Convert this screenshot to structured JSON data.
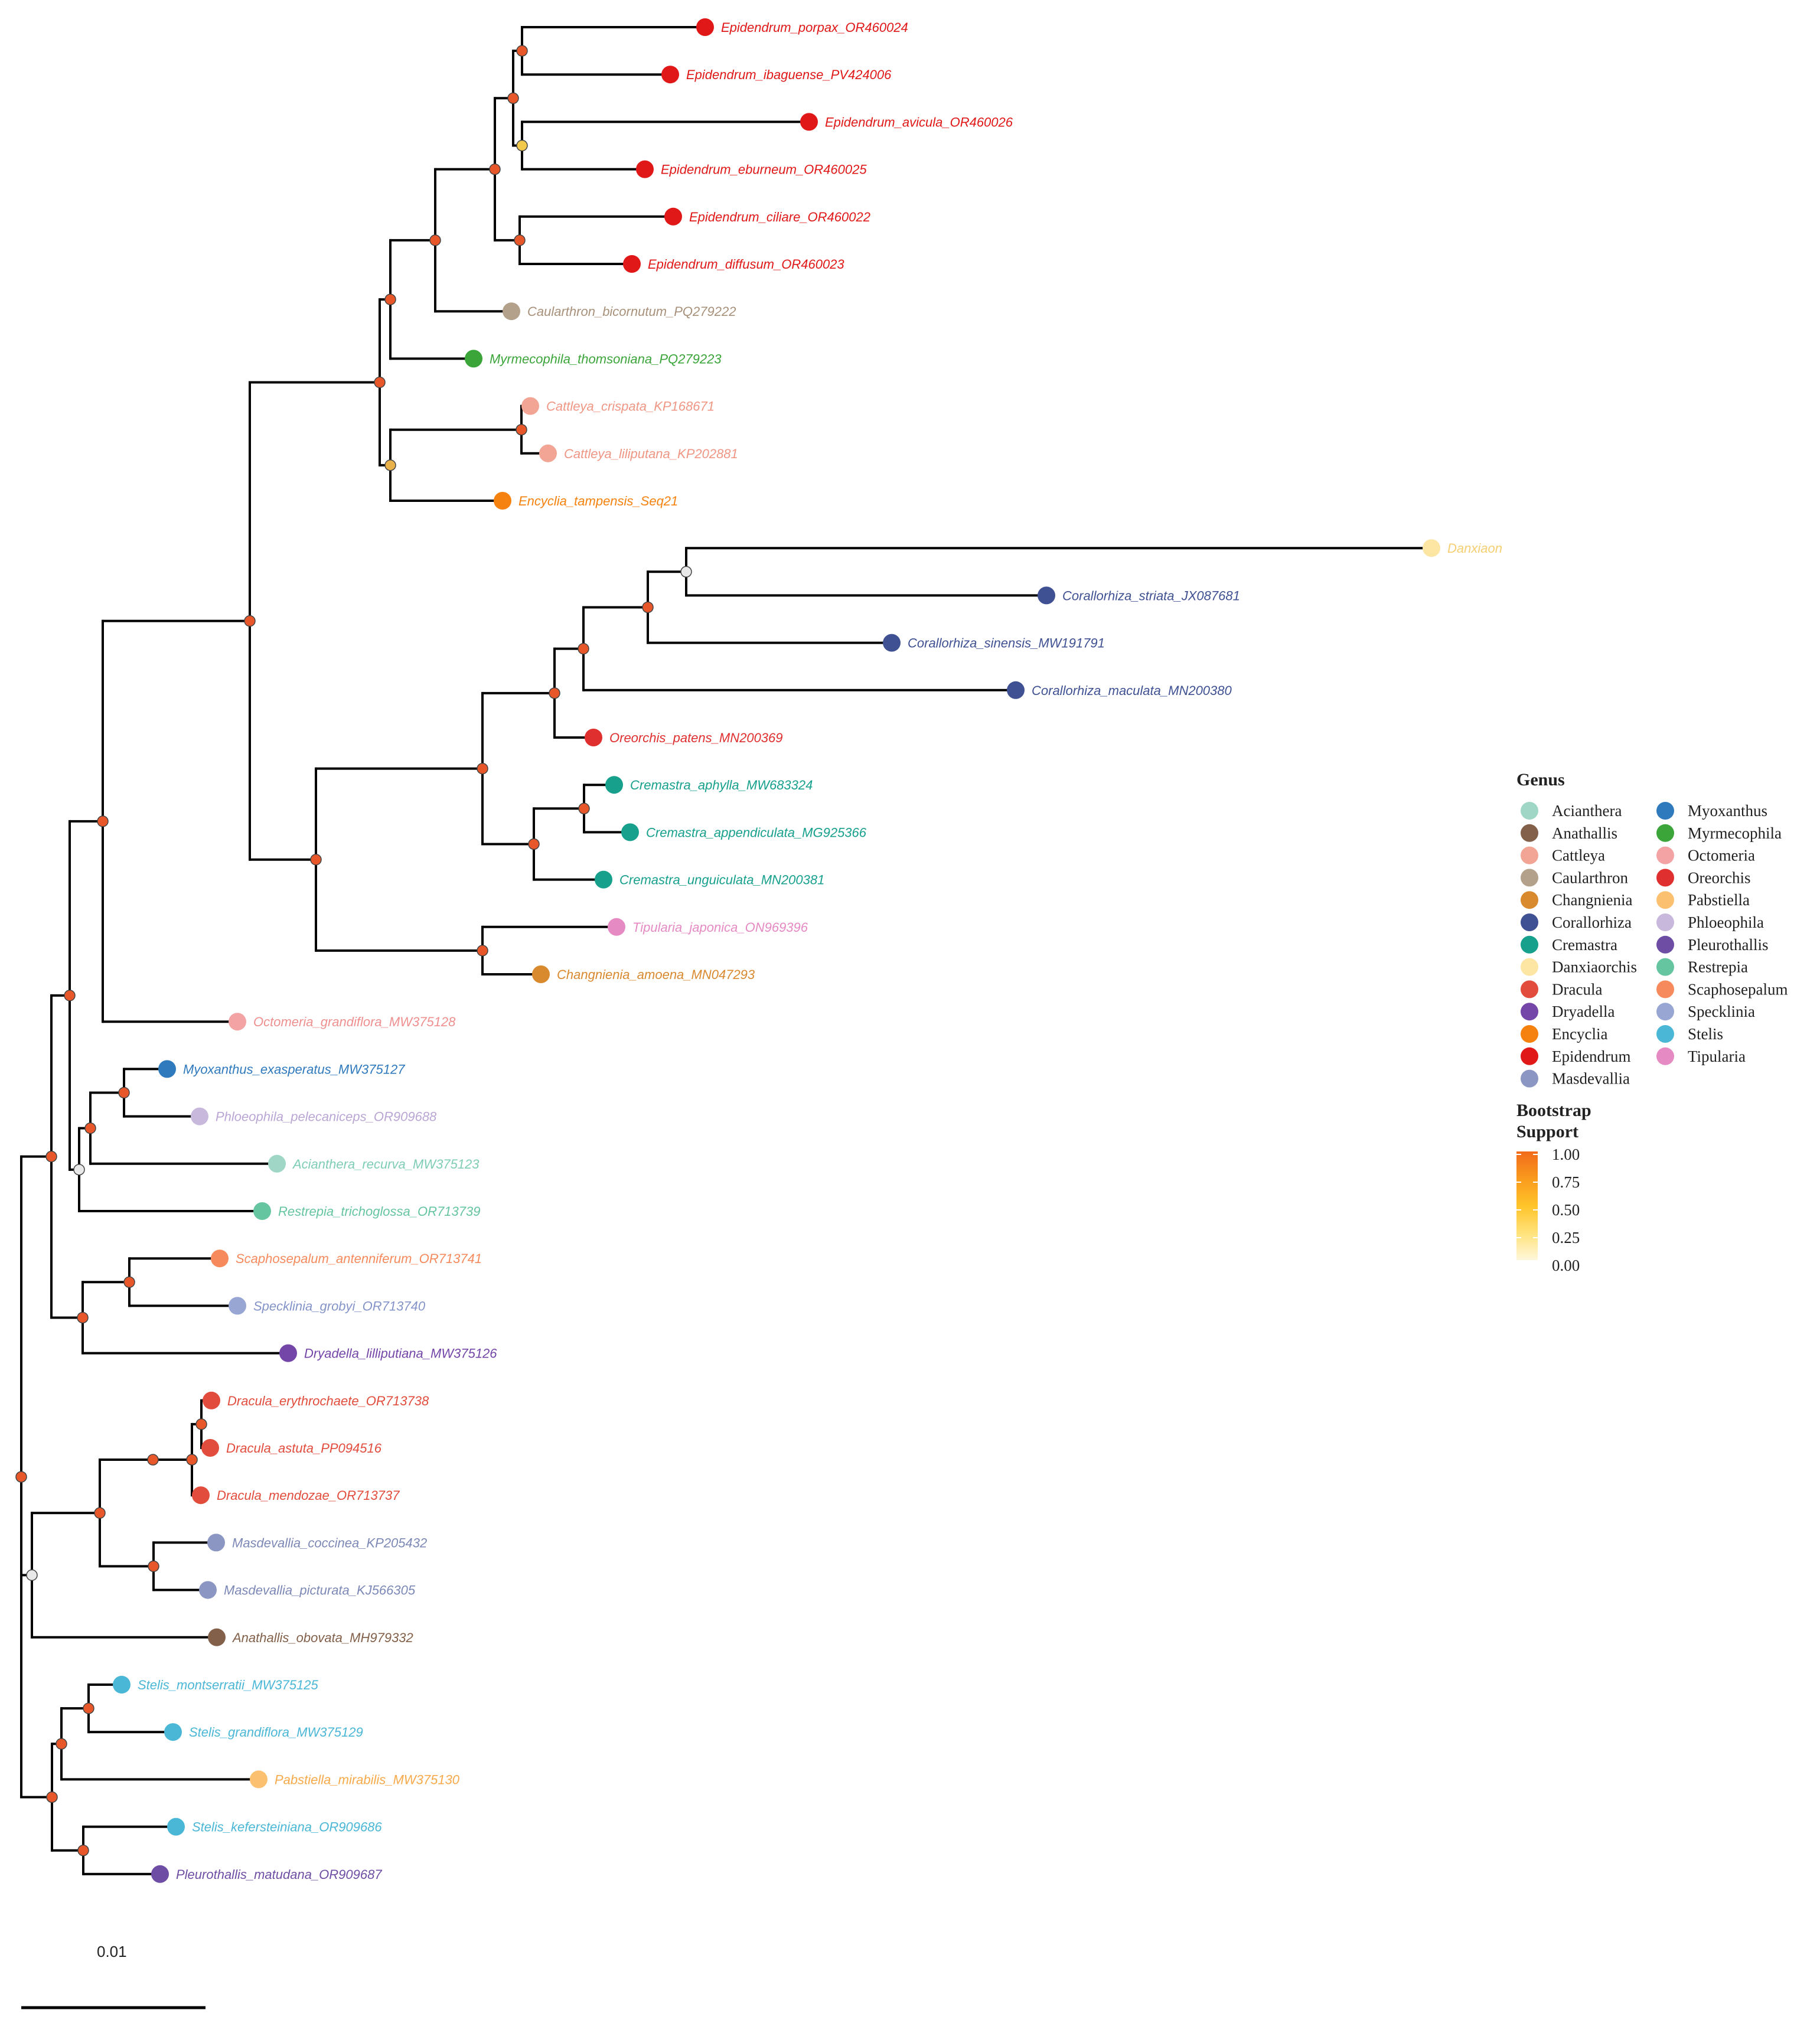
{
  "tree": {
    "tips": [
      {
        "name": "Epidendrum_porpax_OR460024",
        "genus": "Epidendrum"
      },
      {
        "name": "Epidendrum_ibaguense_PV424006",
        "genus": "Epidendrum"
      },
      {
        "name": "Epidendrum_avicula_OR460026",
        "genus": "Epidendrum"
      },
      {
        "name": "Epidendrum_eburneum_OR460025",
        "genus": "Epidendrum"
      },
      {
        "name": "Epidendrum_ciliare_OR460022",
        "genus": "Epidendrum"
      },
      {
        "name": "Epidendrum_diffusum_OR460023",
        "genus": "Epidendrum"
      },
      {
        "name": "Caularthron_bicornutum_PQ279222",
        "genus": "Caularthron"
      },
      {
        "name": "Myrmecophila_thomsoniana_PQ279223",
        "genus": "Myrmecophila"
      },
      {
        "name": "Cattleya_crispata_KP168671",
        "genus": "Cattleya"
      },
      {
        "name": "Cattleya_liliputana_KP202881",
        "genus": "Cattleya"
      },
      {
        "name": "Encyclia_tampensis_Seq21",
        "genus": "Encyclia"
      },
      {
        "name": "Danxiaon",
        "genus": "Danxiaorchis"
      },
      {
        "name": "Corallorhiza_striata_JX087681",
        "genus": "Corallorhiza"
      },
      {
        "name": "Corallorhiza_sinensis_MW191791",
        "genus": "Corallorhiza"
      },
      {
        "name": "Corallorhiza_maculata_MN200380",
        "genus": "Corallorhiza"
      },
      {
        "name": "Oreorchis_patens_MN200369",
        "genus": "Oreorchis"
      },
      {
        "name": "Cremastra_aphylla_MW683324",
        "genus": "Cremastra"
      },
      {
        "name": "Cremastra_appendiculata_MG925366",
        "genus": "Cremastra"
      },
      {
        "name": "Cremastra_unguiculata_MN200381",
        "genus": "Cremastra"
      },
      {
        "name": "Tipularia_japonica_ON969396",
        "genus": "Tipularia"
      },
      {
        "name": "Changnienia_amoena_MN047293",
        "genus": "Changnienia"
      },
      {
        "name": "Octomeria_grandiflora_MW375128",
        "genus": "Octomeria"
      },
      {
        "name": "Myoxanthus_exasperatus_MW375127",
        "genus": "Myoxanthus"
      },
      {
        "name": "Phloeophila_pelecaniceps_OR909688",
        "genus": "Phloeophila"
      },
      {
        "name": "Acianthera_recurva_MW375123",
        "genus": "Acianthera"
      },
      {
        "name": "Restrepia_trichoglossa_OR713739",
        "genus": "Restrepia"
      },
      {
        "name": "Scaphosepalum_antenniferum_OR713741",
        "genus": "Scaphosepalum"
      },
      {
        "name": "Specklinia_grobyi_OR713740",
        "genus": "Specklinia"
      },
      {
        "name": "Dryadella_lilliputiana_MW375126",
        "genus": "Dryadella"
      },
      {
        "name": "Dracula_erythrochaete_OR713738",
        "genus": "Dracula"
      },
      {
        "name": "Dracula_astuta_PP094516",
        "genus": "Dracula"
      },
      {
        "name": "Dracula_mendozae_OR713737",
        "genus": "Dracula"
      },
      {
        "name": "Masdevallia_coccinea_KP205432",
        "genus": "Masdevallia"
      },
      {
        "name": "Masdevallia_picturata_KJ566305",
        "genus": "Masdevallia"
      },
      {
        "name": "Anathallis_obovata_MH979332",
        "genus": "Anathallis"
      },
      {
        "name": "Stelis_montserratii_MW375125",
        "genus": "Stelis"
      },
      {
        "name": "Stelis_grandiflora_MW375129",
        "genus": "Stelis"
      },
      {
        "name": "Pabstiella_mirabilis_MW375130",
        "genus": "Pabstiella"
      },
      {
        "name": "Stelis_kefersteiniana_OR909686",
        "genus": "Stelis"
      },
      {
        "name": "Pleurothallis_matudana_OR909687",
        "genus": "Pleurothallis"
      }
    ]
  },
  "legend": {
    "genus_title": "Genus",
    "genera": [
      {
        "name": "Acianthera",
        "color": "#9fd6c6"
      },
      {
        "name": "Anathallis",
        "color": "#82604a"
      },
      {
        "name": "Cattleya",
        "color": "#f2a594"
      },
      {
        "name": "Caularthron",
        "color": "#b3a18c"
      },
      {
        "name": "Changnienia",
        "color": "#d9892e"
      },
      {
        "name": "Corallorhiza",
        "color": "#3f5192"
      },
      {
        "name": "Cremastra",
        "color": "#17a08c"
      },
      {
        "name": "Danxiaorchis",
        "color": "#fde5a4"
      },
      {
        "name": "Dracula",
        "color": "#e24c3c"
      },
      {
        "name": "Dryadella",
        "color": "#7346a8"
      },
      {
        "name": "Encyclia",
        "color": "#f5820f"
      },
      {
        "name": "Epidendrum",
        "color": "#e01818"
      },
      {
        "name": "Masdevallia",
        "color": "#8b97c2"
      },
      {
        "name": "Myoxanthus",
        "color": "#2f79bd"
      },
      {
        "name": "Myrmecophila",
        "color": "#3ba53a"
      },
      {
        "name": "Octomeria",
        "color": "#f3a3a3"
      },
      {
        "name": "Oreorchis",
        "color": "#e02f2f"
      },
      {
        "name": "Pabstiella",
        "color": "#fbc171"
      },
      {
        "name": "Phloeophila",
        "color": "#c8b8dc"
      },
      {
        "name": "Pleurothallis",
        "color": "#6e4ea4"
      },
      {
        "name": "Restrepia",
        "color": "#66c5a1"
      },
      {
        "name": "Scaphosepalum",
        "color": "#f68a5c"
      },
      {
        "name": "Specklinia",
        "color": "#97a6d2"
      },
      {
        "name": "Stelis",
        "color": "#4bb7d6"
      },
      {
        "name": "Tipularia",
        "color": "#e58ac2"
      }
    ],
    "bootstrap_title_line1": "Bootstrap",
    "bootstrap_title_line2": "Support",
    "bootstrap_ticks": [
      "1.00",
      "0.75",
      "0.50",
      "0.25",
      "0.00"
    ],
    "bootstrap_gradient": [
      "#f26a1b",
      "#f99a1c",
      "#ffc42a",
      "#ffe27a",
      "#fff7dc"
    ]
  },
  "scale_bar": {
    "label": "0.01"
  }
}
